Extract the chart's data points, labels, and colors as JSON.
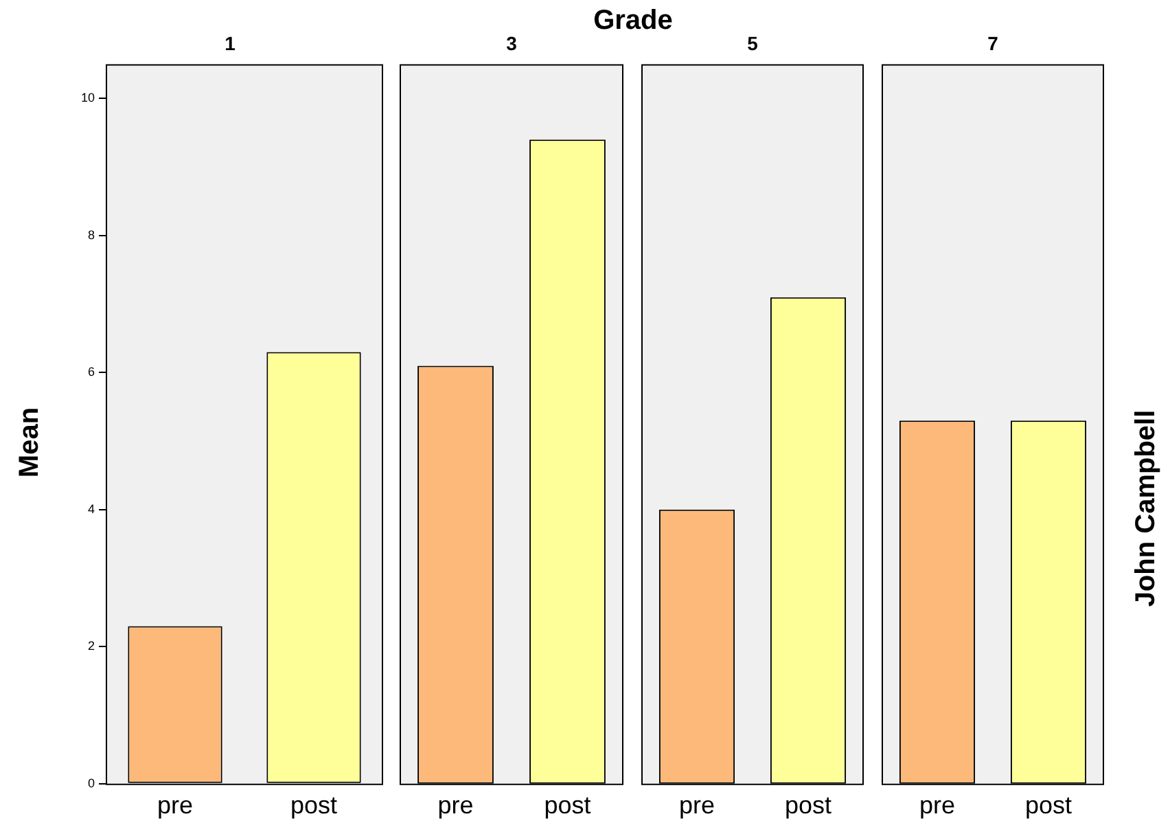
{
  "chart_data": [
    {
      "type": "bar",
      "title": "1",
      "annotations": [
        "Grade"
      ],
      "ylabel": "Mean",
      "categories": [
        "pre",
        "post"
      ],
      "values": [
        2.3,
        6.3
      ],
      "colors": [
        "#fdb97a",
        "#ffff99"
      ],
      "ylim": [
        0,
        10.5
      ],
      "yticks": [
        0,
        2,
        4,
        6,
        8,
        10
      ]
    },
    {
      "type": "bar",
      "title": "3",
      "categories": [
        "pre",
        "post"
      ],
      "values": [
        6.1,
        9.4
      ],
      "colors": [
        "#fdb97a",
        "#ffff99"
      ],
      "ylim": [
        0,
        10.5
      ],
      "yticks": [
        0,
        2,
        4,
        6,
        8,
        10
      ],
      "tick_labels": "x"
    },
    {
      "type": "bar",
      "title": "5",
      "categories": [
        "pre",
        "post"
      ],
      "values": [
        4.0,
        7.1
      ],
      "colors": [
        "#fdb97a",
        "#ffff99"
      ],
      "ylim": [
        0,
        10.5
      ],
      "yticks": [
        0,
        2,
        4,
        6,
        8,
        10
      ],
      "tick_labels": "x"
    },
    {
      "type": "bar",
      "title": "7",
      "y2label": "John Campbell",
      "categories": [
        "pre",
        "post"
      ],
      "values": [
        5.3,
        5.3
      ],
      "colors": [
        "#fdb97a",
        "#ffff99"
      ],
      "ylim": [
        0,
        10.5
      ],
      "yticks": [
        0,
        2,
        4,
        6,
        8,
        10
      ],
      "tick_labels": "x"
    }
  ]
}
